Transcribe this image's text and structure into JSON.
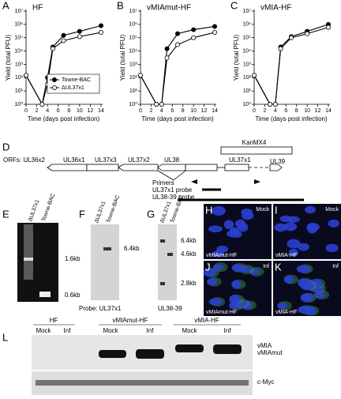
{
  "chart_data": [
    {
      "type": "line",
      "label": "A",
      "title": "HF",
      "ylabel": "Yield (total PFU)",
      "xlabel": "Time (days post infection)",
      "x": [
        0,
        3,
        4,
        5,
        7,
        10,
        14
      ],
      "log": true,
      "legend": "lower right",
      "xlim": [
        0,
        14
      ],
      "xticks": [
        0,
        2,
        4,
        6,
        8,
        10,
        12,
        14
      ],
      "ylim": [
        1,
        10000000
      ],
      "yticks": [
        {
          "value": 1,
          "label": "10⁰"
        },
        {
          "value": 10,
          "label": "10¹"
        },
        {
          "value": 100,
          "label": "10²"
        },
        {
          "value": 1000,
          "label": "10³"
        },
        {
          "value": 10000,
          "label": "10⁴"
        },
        {
          "value": 100000,
          "label": "10⁵"
        },
        {
          "value": 1000000,
          "label": "10⁶"
        },
        {
          "value": 10000000,
          "label": "10⁷"
        }
      ],
      "series": [
        {
          "name": "Towne-BAC",
          "color": "#000000",
          "values": [
            150,
            1,
            100,
            20000,
            150000,
            300000,
            800000
          ]
        },
        {
          "name": "ΔUL37x1",
          "color": "#ffffff",
          "values": [
            150,
            1,
            30,
            15000,
            60000,
            120000,
            250000
          ]
        }
      ]
    },
    {
      "type": "line",
      "label": "B",
      "title": "vMIAmut-HF",
      "ylabel": "Yield (total PFU)",
      "xlabel": "Time (days post infection)",
      "x": [
        0,
        3,
        4,
        5,
        7,
        10,
        14
      ],
      "log": true,
      "xlim": [
        0,
        14
      ],
      "xticks": [
        0,
        2,
        4,
        6,
        8,
        10,
        12,
        14
      ],
      "ylim": [
        1,
        10000000
      ],
      "yticks": [
        {
          "value": 1,
          "label": "10⁰"
        },
        {
          "value": 10,
          "label": "10¹"
        },
        {
          "value": 100,
          "label": "10²"
        },
        {
          "value": 1000,
          "label": "10³"
        },
        {
          "value": 10000,
          "label": "10⁴"
        },
        {
          "value": 100000,
          "label": "10⁵"
        },
        {
          "value": 1000000,
          "label": "10⁶"
        },
        {
          "value": 10000000,
          "label": "10⁷"
        }
      ],
      "series": [
        {
          "color": "#000000",
          "values": [
            150,
            1,
            1,
            15000,
            200000,
            400000,
            700000
          ]
        },
        {
          "color": "#ffffff",
          "values": [
            150,
            1,
            1,
            3000,
            30000,
            100000,
            250000
          ]
        }
      ]
    },
    {
      "type": "line",
      "label": "C",
      "title": "vMIA-HF",
      "ylabel": "Yield (total PFU)",
      "xlabel": "Time (days post infection)",
      "x": [
        0,
        3,
        4,
        5,
        7,
        10,
        14
      ],
      "log": true,
      "xlim": [
        0,
        14
      ],
      "xticks": [
        0,
        2,
        4,
        6,
        8,
        10,
        12,
        14
      ],
      "ylim": [
        1,
        10000000
      ],
      "yticks": [
        {
          "value": 1,
          "label": "10⁰"
        },
        {
          "value": 10,
          "label": "10¹"
        },
        {
          "value": 100,
          "label": "10²"
        },
        {
          "value": 1000,
          "label": "10³"
        },
        {
          "value": 10000,
          "label": "10⁴"
        },
        {
          "value": 100000,
          "label": "10⁵"
        },
        {
          "value": 1000000,
          "label": "10⁶"
        },
        {
          "value": 10000000,
          "label": "10⁷"
        }
      ],
      "series": [
        {
          "color": "#000000",
          "values": [
            150,
            1,
            1,
            20000,
            120000,
            300000,
            1000000
          ]
        },
        {
          "color": "#ffffff",
          "values": [
            150,
            1,
            1,
            15000,
            100000,
            200000,
            600000
          ]
        }
      ]
    }
  ],
  "diagram": {
    "label": "D",
    "orfs_label": "ORFs: UL36x2",
    "genes": [
      "UL36x1",
      "UL37x3",
      "UL37x2",
      "UL38",
      "UL37x1",
      "UL39"
    ],
    "cassette": "KanMX4",
    "primers": "Primers",
    "probes": [
      "UL37x1 probe",
      "UL38-39 probe"
    ]
  },
  "gels": [
    {
      "label": "E",
      "lanes": [
        "ΔUL37x1",
        "Towne-BAC"
      ],
      "sizes": [
        "1.6kb",
        "0.6kb"
      ]
    },
    {
      "label": "F",
      "lanes": [
        "ΔUL37x1",
        "Towne-BAC"
      ],
      "sizes": [
        "6.4kb"
      ],
      "probe": "Probe: UL37x1"
    },
    {
      "label": "G",
      "lanes": [
        "ΔUL37x1",
        "Towne-BAC"
      ],
      "sizes": [
        "6.4kb",
        "4.6kb",
        "2.8kb"
      ],
      "probe": "UL38-39"
    }
  ],
  "micrographs": [
    {
      "label": "H",
      "condition": "Mock",
      "cells": "vMIAmut-HF"
    },
    {
      "label": "I",
      "condition": "Mock",
      "cells": "vMIA-HF"
    },
    {
      "label": "J",
      "condition": "Inf",
      "cells": "vMIAmut-HF"
    },
    {
      "label": "K",
      "condition": "Inf",
      "cells": "vMIA-HF"
    }
  ],
  "blot": {
    "label": "L",
    "groups": [
      "HF",
      "vMIAmut-HF",
      "vMIA-HF"
    ],
    "lanes": [
      "Mock",
      "Inf",
      "Mock",
      "Inf",
      "Mock",
      "Inf"
    ],
    "bands": [
      "vMIA",
      "vMIAmut",
      "c-Myc"
    ]
  }
}
